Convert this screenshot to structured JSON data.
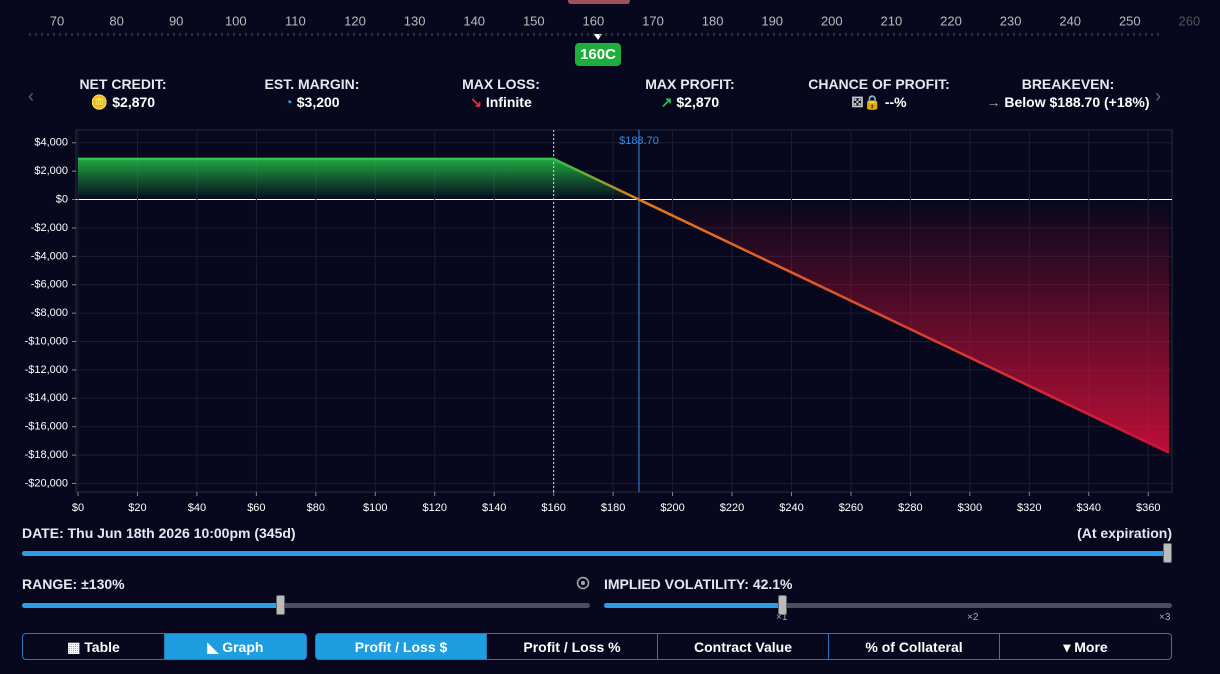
{
  "strike_ruler": {
    "ticks": [
      70,
      80,
      90,
      100,
      110,
      120,
      130,
      140,
      150,
      160,
      170,
      180,
      190,
      200,
      210,
      220,
      230,
      240,
      250,
      260
    ],
    "selected": "160C"
  },
  "stats": [
    {
      "label": "NET CREDIT:",
      "value": "$2,870"
    },
    {
      "label": "EST. MARGIN:",
      "value": "$3,200"
    },
    {
      "label": "MAX LOSS:",
      "value": "Infinite"
    },
    {
      "label": "MAX PROFIT:",
      "value": "$2,870"
    },
    {
      "label": "CHANCE OF PROFIT:",
      "value": "--%"
    },
    {
      "label": "BREAKEVEN:",
      "value": "Below $188.70 (+18%)"
    }
  ],
  "chart_data": {
    "type": "line",
    "x": [
      0,
      160,
      188.7,
      367
    ],
    "values": [
      2870,
      2870,
      0,
      -17830
    ],
    "xlim": [
      0,
      368
    ],
    "ylim": [
      -20600,
      4900
    ],
    "xticks": [
      {
        "value": 0,
        "label": "$0"
      },
      {
        "value": 20,
        "label": "$20"
      },
      {
        "value": 40,
        "label": "$40"
      },
      {
        "value": 60,
        "label": "$60"
      },
      {
        "value": 80,
        "label": "$80"
      },
      {
        "value": 100,
        "label": "$100"
      },
      {
        "value": 120,
        "label": "$120"
      },
      {
        "value": 140,
        "label": "$140"
      },
      {
        "value": 160,
        "label": "$160"
      },
      {
        "value": 180,
        "label": "$180"
      },
      {
        "value": 200,
        "label": "$200"
      },
      {
        "value": 220,
        "label": "$220"
      },
      {
        "value": 240,
        "label": "$240"
      },
      {
        "value": 260,
        "label": "$260"
      },
      {
        "value": 280,
        "label": "$280"
      },
      {
        "value": 300,
        "label": "$300"
      },
      {
        "value": 320,
        "label": "$320"
      },
      {
        "value": 340,
        "label": "$340"
      },
      {
        "value": 360,
        "label": "$360"
      }
    ],
    "yticks": [
      {
        "value": 4000,
        "label": "$4,000"
      },
      {
        "value": 2000,
        "label": "$2,000"
      },
      {
        "value": 0,
        "label": "$0"
      },
      {
        "value": -2000,
        "label": "-$2,000"
      },
      {
        "value": -4000,
        "label": "-$4,000"
      },
      {
        "value": -6000,
        "label": "-$6,000"
      },
      {
        "value": -8000,
        "label": "-$8,000"
      },
      {
        "value": -10000,
        "label": "-$10,000"
      },
      {
        "value": -12000,
        "label": "-$12,000"
      },
      {
        "value": -14000,
        "label": "-$14,000"
      },
      {
        "value": -16000,
        "label": "-$16,000"
      },
      {
        "value": -18000,
        "label": "-$18,000"
      },
      {
        "value": -20000,
        "label": "-$20,000"
      }
    ],
    "grid": true,
    "markers": [
      {
        "x": 160
      },
      {
        "x": 188.7,
        "label": "$188.70"
      }
    ]
  },
  "date": {
    "label": "DATE:",
    "value": "Thu Jun 18th 2026 10:00pm (345d)",
    "right": "(At expiration)"
  },
  "range": {
    "label": "RANGE:",
    "value": "±130%"
  },
  "iv": {
    "label": "IMPLIED VOLATILITY:",
    "value": "42.1%",
    "marks": [
      "×1",
      "×2",
      "×3"
    ]
  },
  "buttons": [
    "Table",
    "Graph",
    "Profit / Loss $",
    "Profit / Loss %",
    "Contract Value",
    "% of Collateral",
    "More"
  ]
}
